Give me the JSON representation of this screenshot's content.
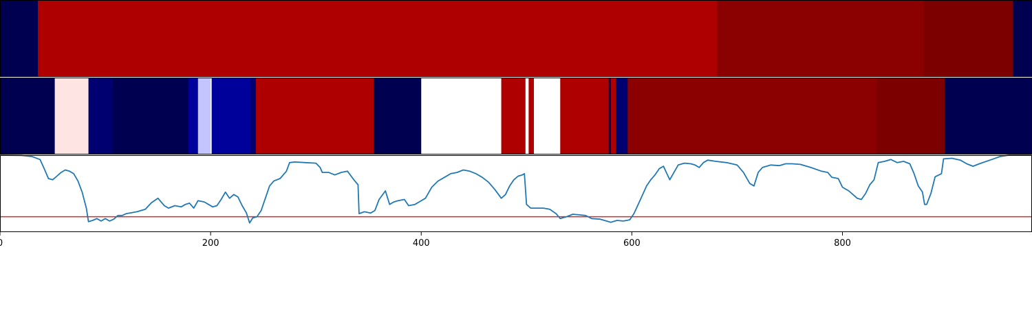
{
  "chart_data": [
    {
      "type": "heatmap",
      "x_range": [
        0,
        980
      ],
      "colors": {
        "navy": "#000050",
        "red": "#ae0000",
        "dark_red": "#8b0000",
        "maroon": "#7d0000"
      },
      "segments": [
        {
          "start": 0,
          "end": 36,
          "color": "#000050"
        },
        {
          "start": 36,
          "end": 681,
          "color": "#ae0000"
        },
        {
          "start": 681,
          "end": 877,
          "color": "#8b0000"
        },
        {
          "start": 877,
          "end": 962,
          "color": "#7d0000"
        },
        {
          "start": 962,
          "end": 980,
          "color": "#000050"
        }
      ]
    },
    {
      "type": "heatmap",
      "x_range": [
        0,
        980
      ],
      "colors": {
        "navy": "#000050",
        "pink": "#ffe4e4",
        "blue": "#000070",
        "bright_blue": "#00009a",
        "lavender": "#c4c4ff",
        "red": "#ae0000",
        "white": "#ffffff",
        "dark_red": "#8b0000",
        "maroon": "#7d0000"
      },
      "segments": [
        {
          "start": 0,
          "end": 52,
          "color": "#000050"
        },
        {
          "start": 52,
          "end": 84,
          "color": "#ffe4e4"
        },
        {
          "start": 84,
          "end": 107,
          "color": "#000070"
        },
        {
          "start": 107,
          "end": 179,
          "color": "#000050"
        },
        {
          "start": 179,
          "end": 188,
          "color": "#00009a"
        },
        {
          "start": 188,
          "end": 200,
          "color": "#c4c4ff"
        },
        {
          "start": 200,
          "end": 201,
          "color": "#ffffff"
        },
        {
          "start": 201,
          "end": 238,
          "color": "#00009a"
        },
        {
          "start": 238,
          "end": 243,
          "color": "#000070"
        },
        {
          "start": 243,
          "end": 355,
          "color": "#ae0000"
        },
        {
          "start": 355,
          "end": 400,
          "color": "#000050"
        },
        {
          "start": 400,
          "end": 476,
          "color": "#ffffff"
        },
        {
          "start": 476,
          "end": 499,
          "color": "#ae0000"
        },
        {
          "start": 499,
          "end": 502,
          "color": "#ffffff"
        },
        {
          "start": 502,
          "end": 507,
          "color": "#ae0000"
        },
        {
          "start": 507,
          "end": 509,
          "color": "#ffffff"
        },
        {
          "start": 509,
          "end": 532,
          "color": "#ffffff"
        },
        {
          "start": 532,
          "end": 578,
          "color": "#ae0000"
        },
        {
          "start": 578,
          "end": 580,
          "color": "#000050"
        },
        {
          "start": 580,
          "end": 585,
          "color": "#ae0000"
        },
        {
          "start": 585,
          "end": 596,
          "color": "#000070"
        },
        {
          "start": 596,
          "end": 832,
          "color": "#8b0000"
        },
        {
          "start": 832,
          "end": 897,
          "color": "#7d0000"
        },
        {
          "start": 897,
          "end": 980,
          "color": "#000050"
        }
      ]
    },
    {
      "type": "line",
      "x_range": [
        0,
        980
      ],
      "ylim": [
        -0.25,
        1.0
      ],
      "series": [
        {
          "color": "#1f77b4",
          "points": [
            [
              0,
              1.0
            ],
            [
              20,
              0.995
            ],
            [
              30,
              0.98
            ],
            [
              38,
              0.93
            ],
            [
              42,
              0.78
            ],
            [
              46,
              0.62
            ],
            [
              50,
              0.6
            ],
            [
              54,
              0.66
            ],
            [
              58,
              0.72
            ],
            [
              62,
              0.76
            ],
            [
              66,
              0.74
            ],
            [
              70,
              0.7
            ],
            [
              74,
              0.58
            ],
            [
              78,
              0.4
            ],
            [
              82,
              0.14
            ],
            [
              84,
              -0.08
            ],
            [
              88,
              -0.06
            ],
            [
              92,
              -0.03
            ],
            [
              96,
              -0.07
            ],
            [
              100,
              -0.03
            ],
            [
              104,
              -0.07
            ],
            [
              108,
              -0.04
            ],
            [
              112,
              0.02
            ],
            [
              116,
              0.02
            ],
            [
              120,
              0.05
            ],
            [
              130,
              0.08
            ],
            [
              138,
              0.12
            ],
            [
              144,
              0.23
            ],
            [
              150,
              0.3
            ],
            [
              156,
              0.18
            ],
            [
              160,
              0.14
            ],
            [
              166,
              0.18
            ],
            [
              172,
              0.16
            ],
            [
              176,
              0.2
            ],
            [
              180,
              0.22
            ],
            [
              184,
              0.14
            ],
            [
              188,
              0.26
            ],
            [
              194,
              0.24
            ],
            [
              198,
              0.2
            ],
            [
              202,
              0.16
            ],
            [
              206,
              0.18
            ],
            [
              210,
              0.28
            ],
            [
              214,
              0.4
            ],
            [
              218,
              0.3
            ],
            [
              222,
              0.36
            ],
            [
              226,
              0.32
            ],
            [
              230,
              0.18
            ],
            [
              234,
              0.06
            ],
            [
              237,
              -0.1
            ],
            [
              240,
              -0.02
            ],
            [
              244,
              0.0
            ],
            [
              248,
              0.1
            ],
            [
              252,
              0.3
            ],
            [
              256,
              0.5
            ],
            [
              260,
              0.58
            ],
            [
              266,
              0.62
            ],
            [
              272,
              0.74
            ],
            [
              275,
              0.88
            ],
            [
              280,
              0.89
            ],
            [
              290,
              0.88
            ],
            [
              300,
              0.87
            ],
            [
              304,
              0.8
            ],
            [
              306,
              0.72
            ],
            [
              312,
              0.72
            ],
            [
              318,
              0.68
            ],
            [
              324,
              0.72
            ],
            [
              330,
              0.74
            ],
            [
              336,
              0.6
            ],
            [
              340,
              0.52
            ],
            [
              341,
              0.05
            ],
            [
              346,
              0.08
            ],
            [
              352,
              0.06
            ],
            [
              356,
              0.1
            ],
            [
              360,
              0.28
            ],
            [
              366,
              0.42
            ],
            [
              370,
              0.2
            ],
            [
              374,
              0.24
            ],
            [
              378,
              0.26
            ],
            [
              384,
              0.28
            ],
            [
              388,
              0.18
            ],
            [
              394,
              0.2
            ],
            [
              398,
              0.24
            ],
            [
              404,
              0.3
            ],
            [
              410,
              0.48
            ],
            [
              416,
              0.58
            ],
            [
              422,
              0.64
            ],
            [
              428,
              0.7
            ],
            [
              434,
              0.72
            ],
            [
              440,
              0.76
            ],
            [
              446,
              0.74
            ],
            [
              452,
              0.7
            ],
            [
              458,
              0.64
            ],
            [
              464,
              0.56
            ],
            [
              470,
              0.44
            ],
            [
              476,
              0.3
            ],
            [
              480,
              0.36
            ],
            [
              484,
              0.5
            ],
            [
              488,
              0.6
            ],
            [
              492,
              0.66
            ],
            [
              496,
              0.68
            ],
            [
              498,
              0.7
            ],
            [
              500,
              0.2
            ],
            [
              504,
              0.14
            ],
            [
              510,
              0.14
            ],
            [
              516,
              0.14
            ],
            [
              522,
              0.12
            ],
            [
              528,
              0.05
            ],
            [
              532,
              -0.03
            ],
            [
              538,
              0.0
            ],
            [
              544,
              0.04
            ],
            [
              550,
              0.03
            ],
            [
              556,
              0.02
            ],
            [
              562,
              -0.03
            ],
            [
              570,
              -0.04
            ],
            [
              576,
              -0.07
            ],
            [
              580,
              -0.09
            ],
            [
              586,
              -0.06
            ],
            [
              592,
              -0.07
            ],
            [
              598,
              -0.05
            ],
            [
              602,
              0.05
            ],
            [
              606,
              0.2
            ],
            [
              610,
              0.35
            ],
            [
              614,
              0.5
            ],
            [
              618,
              0.6
            ],
            [
              622,
              0.68
            ],
            [
              626,
              0.78
            ],
            [
              630,
              0.82
            ],
            [
              636,
              0.6
            ],
            [
              640,
              0.72
            ],
            [
              644,
              0.84
            ],
            [
              650,
              0.87
            ],
            [
              656,
              0.86
            ],
            [
              660,
              0.84
            ],
            [
              664,
              0.8
            ],
            [
              668,
              0.88
            ],
            [
              672,
              0.92
            ],
            [
              680,
              0.9
            ],
            [
              690,
              0.88
            ],
            [
              700,
              0.84
            ],
            [
              706,
              0.72
            ],
            [
              712,
              0.54
            ],
            [
              716,
              0.5
            ],
            [
              720,
              0.72
            ],
            [
              724,
              0.8
            ],
            [
              732,
              0.84
            ],
            [
              740,
              0.83
            ],
            [
              746,
              0.86
            ],
            [
              752,
              0.86
            ],
            [
              760,
              0.85
            ],
            [
              770,
              0.8
            ],
            [
              780,
              0.74
            ],
            [
              786,
              0.72
            ],
            [
              790,
              0.64
            ],
            [
              796,
              0.62
            ],
            [
              800,
              0.48
            ],
            [
              806,
              0.42
            ],
            [
              810,
              0.36
            ],
            [
              814,
              0.3
            ],
            [
              818,
              0.28
            ],
            [
              822,
              0.38
            ],
            [
              826,
              0.52
            ],
            [
              830,
              0.6
            ],
            [
              834,
              0.88
            ],
            [
              840,
              0.9
            ],
            [
              846,
              0.93
            ],
            [
              852,
              0.88
            ],
            [
              858,
              0.9
            ],
            [
              864,
              0.86
            ],
            [
              868,
              0.7
            ],
            [
              872,
              0.5
            ],
            [
              876,
              0.4
            ],
            [
              878,
              0.2
            ],
            [
              880,
              0.2
            ],
            [
              884,
              0.38
            ],
            [
              888,
              0.65
            ],
            [
              894,
              0.7
            ],
            [
              896,
              0.94
            ],
            [
              904,
              0.95
            ],
            [
              912,
              0.92
            ],
            [
              918,
              0.86
            ],
            [
              924,
              0.82
            ],
            [
              930,
              0.86
            ],
            [
              940,
              0.92
            ],
            [
              950,
              0.98
            ],
            [
              958,
              1.0
            ],
            [
              965,
              1.0
            ],
            [
              980,
              1.0
            ]
          ]
        }
      ],
      "threshold": {
        "y": 0.0,
        "color": "#d62728"
      },
      "xticks": [
        0,
        200,
        400,
        600,
        800
      ],
      "xtick_labels": [
        "0",
        "200",
        "400",
        "600",
        "800"
      ]
    }
  ]
}
